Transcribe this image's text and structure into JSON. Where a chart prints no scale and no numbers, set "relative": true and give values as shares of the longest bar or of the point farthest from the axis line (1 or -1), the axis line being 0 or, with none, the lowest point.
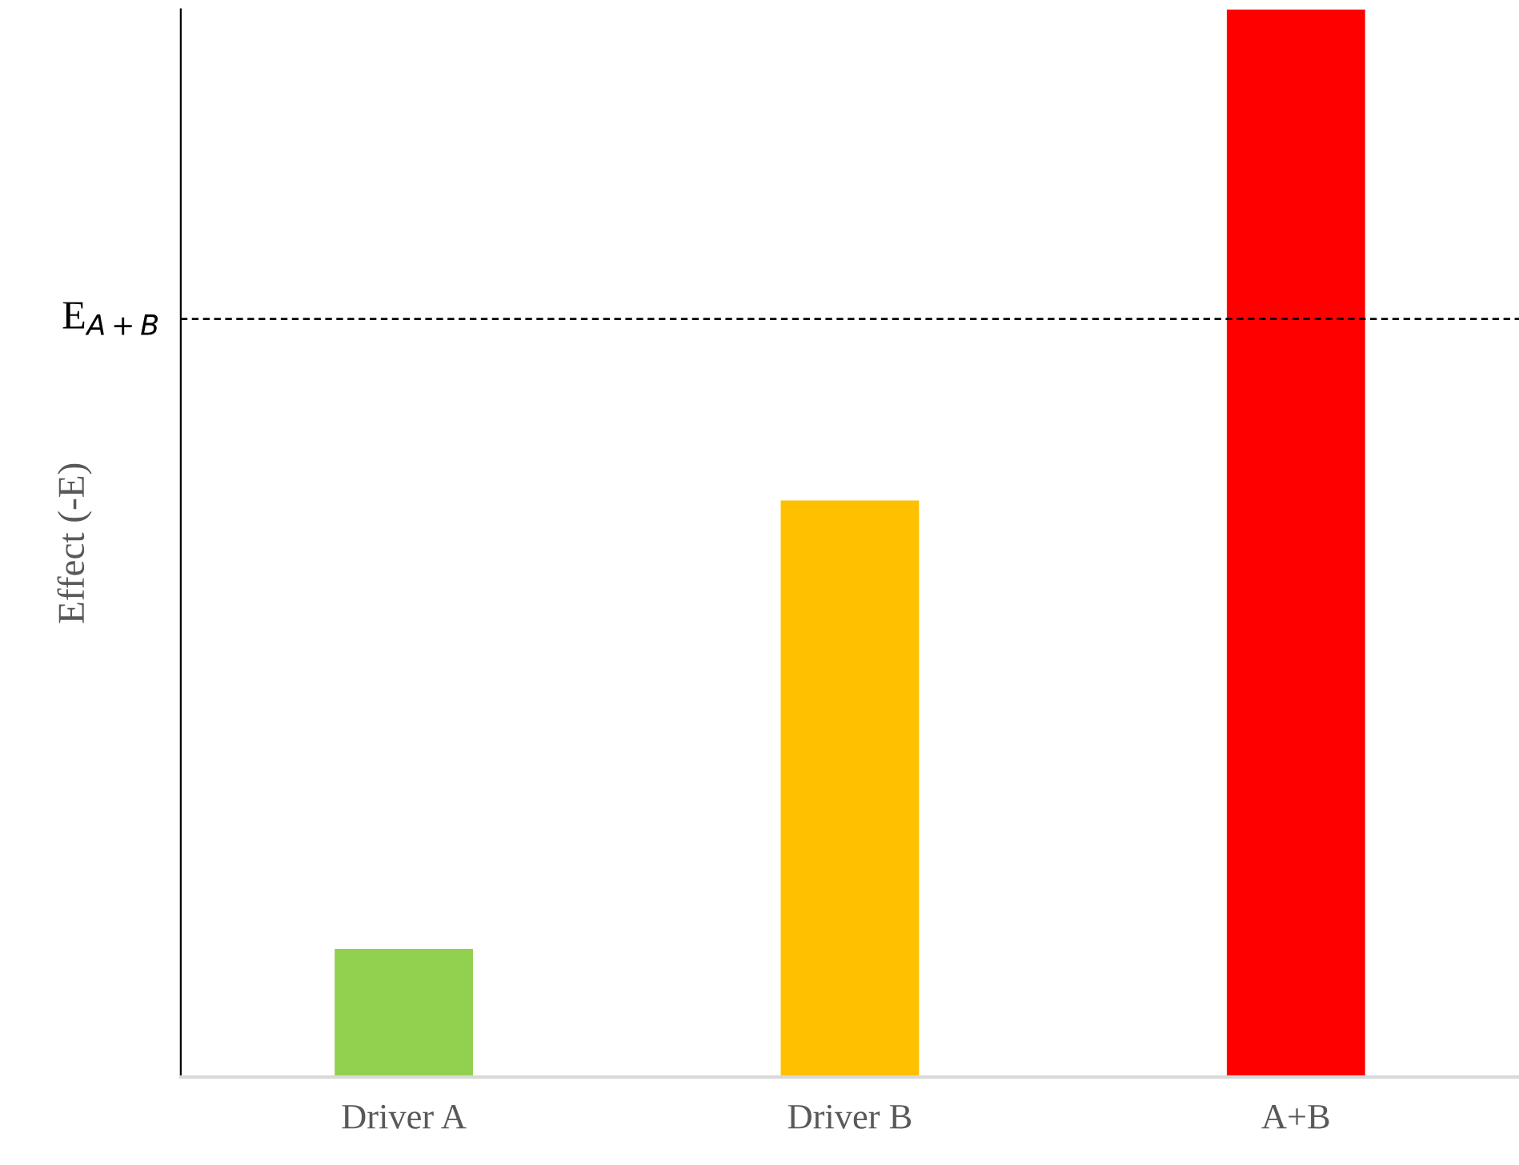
{
  "chart_data": {
    "type": "bar",
    "relative": true,
    "ylabel": "Effect (-E)",
    "categories": [
      "Driver A",
      "Driver B",
      "A+B"
    ],
    "values": [
      0.12,
      0.54,
      1
    ],
    "colors": [
      "#92d050",
      "#ffc000",
      "#ff0000"
    ],
    "ref_lines": [
      {
        "axis": "y",
        "value": 0.71,
        "label": "E$_{A+B}$",
        "color": "#000000",
        "line_style": "dashed"
      }
    ],
    "grid": false,
    "legend": false
  }
}
